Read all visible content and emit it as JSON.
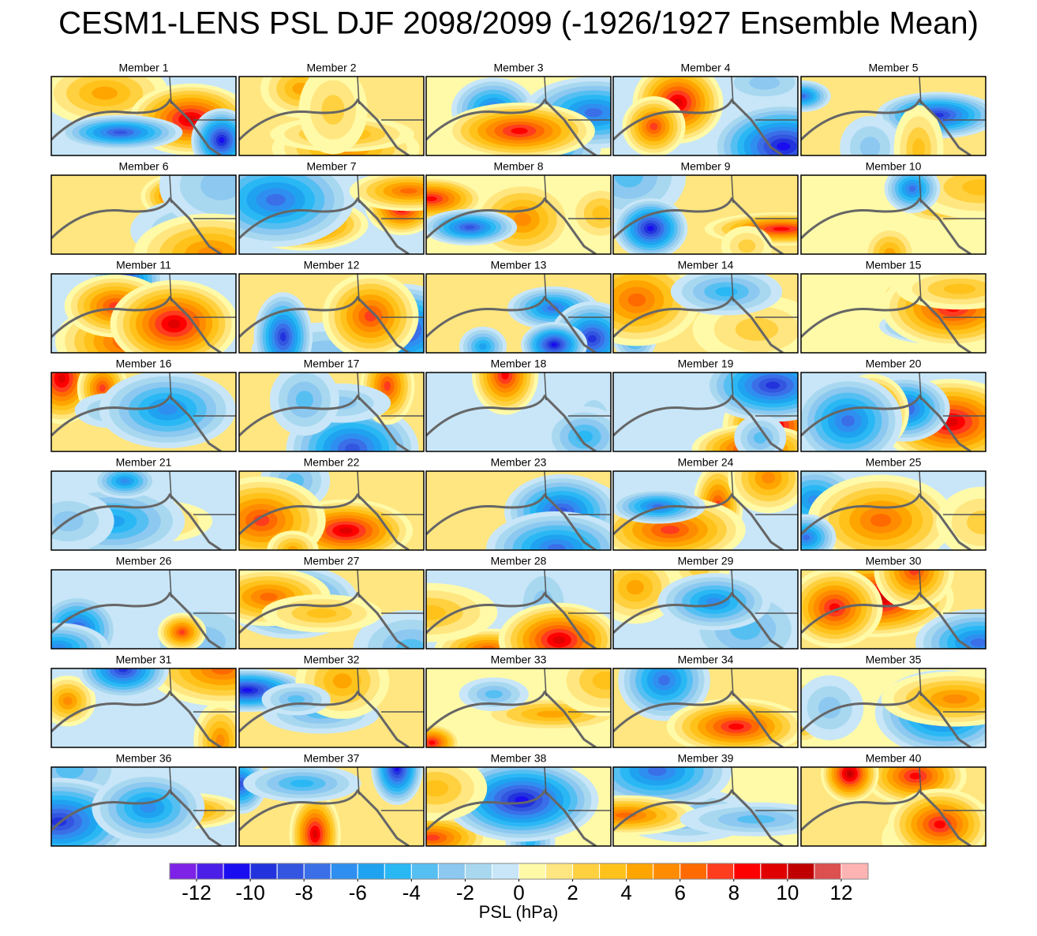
{
  "chart_data": {
    "type": "map-grid",
    "title": "CESM1-LENS PSL DJF 2098/2099 (-1926/1927 Ensemble Mean)",
    "panels": [
      "Member 1",
      "Member 2",
      "Member 3",
      "Member 4",
      "Member 5",
      "Member 6",
      "Member 7",
      "Member 8",
      "Member 9",
      "Member 10",
      "Member 11",
      "Member 12",
      "Member 13",
      "Member 14",
      "Member 15",
      "Member 16",
      "Member 17",
      "Member 18",
      "Member 19",
      "Member 20",
      "Member 21",
      "Member 22",
      "Member 23",
      "Member 24",
      "Member 25",
      "Member 26",
      "Member 27",
      "Member 28",
      "Member 29",
      "Member 30",
      "Member 31",
      "Member 32",
      "Member 33",
      "Member 34",
      "Member 35",
      "Member 36",
      "Member 37",
      "Member 38",
      "Member 39",
      "Member 40"
    ],
    "colorbar": {
      "label": "PSL (hPa)",
      "range": [
        -13,
        13
      ],
      "ticks": [
        -12,
        -10,
        -8,
        -6,
        -4,
        -2,
        0,
        2,
        4,
        6,
        8,
        10,
        12
      ],
      "colors": [
        "#7d22e6",
        "#4b1fe8",
        "#1a0df0",
        "#2233dd",
        "#3355e0",
        "#3a6fe8",
        "#2f8ff0",
        "#1fa3f0",
        "#2ab8f5",
        "#56bff2",
        "#8cc8f0",
        "#a8d8f0",
        "#c8e6f8",
        "#fffaa8",
        "#ffe680",
        "#ffd040",
        "#ffc21a",
        "#ffa500",
        "#ff8c00",
        "#ff6a00",
        "#ff3c1e",
        "#ff0000",
        "#e00000",
        "#c00000",
        "#dc5050",
        "#ffb4b4"
      ]
    }
  }
}
